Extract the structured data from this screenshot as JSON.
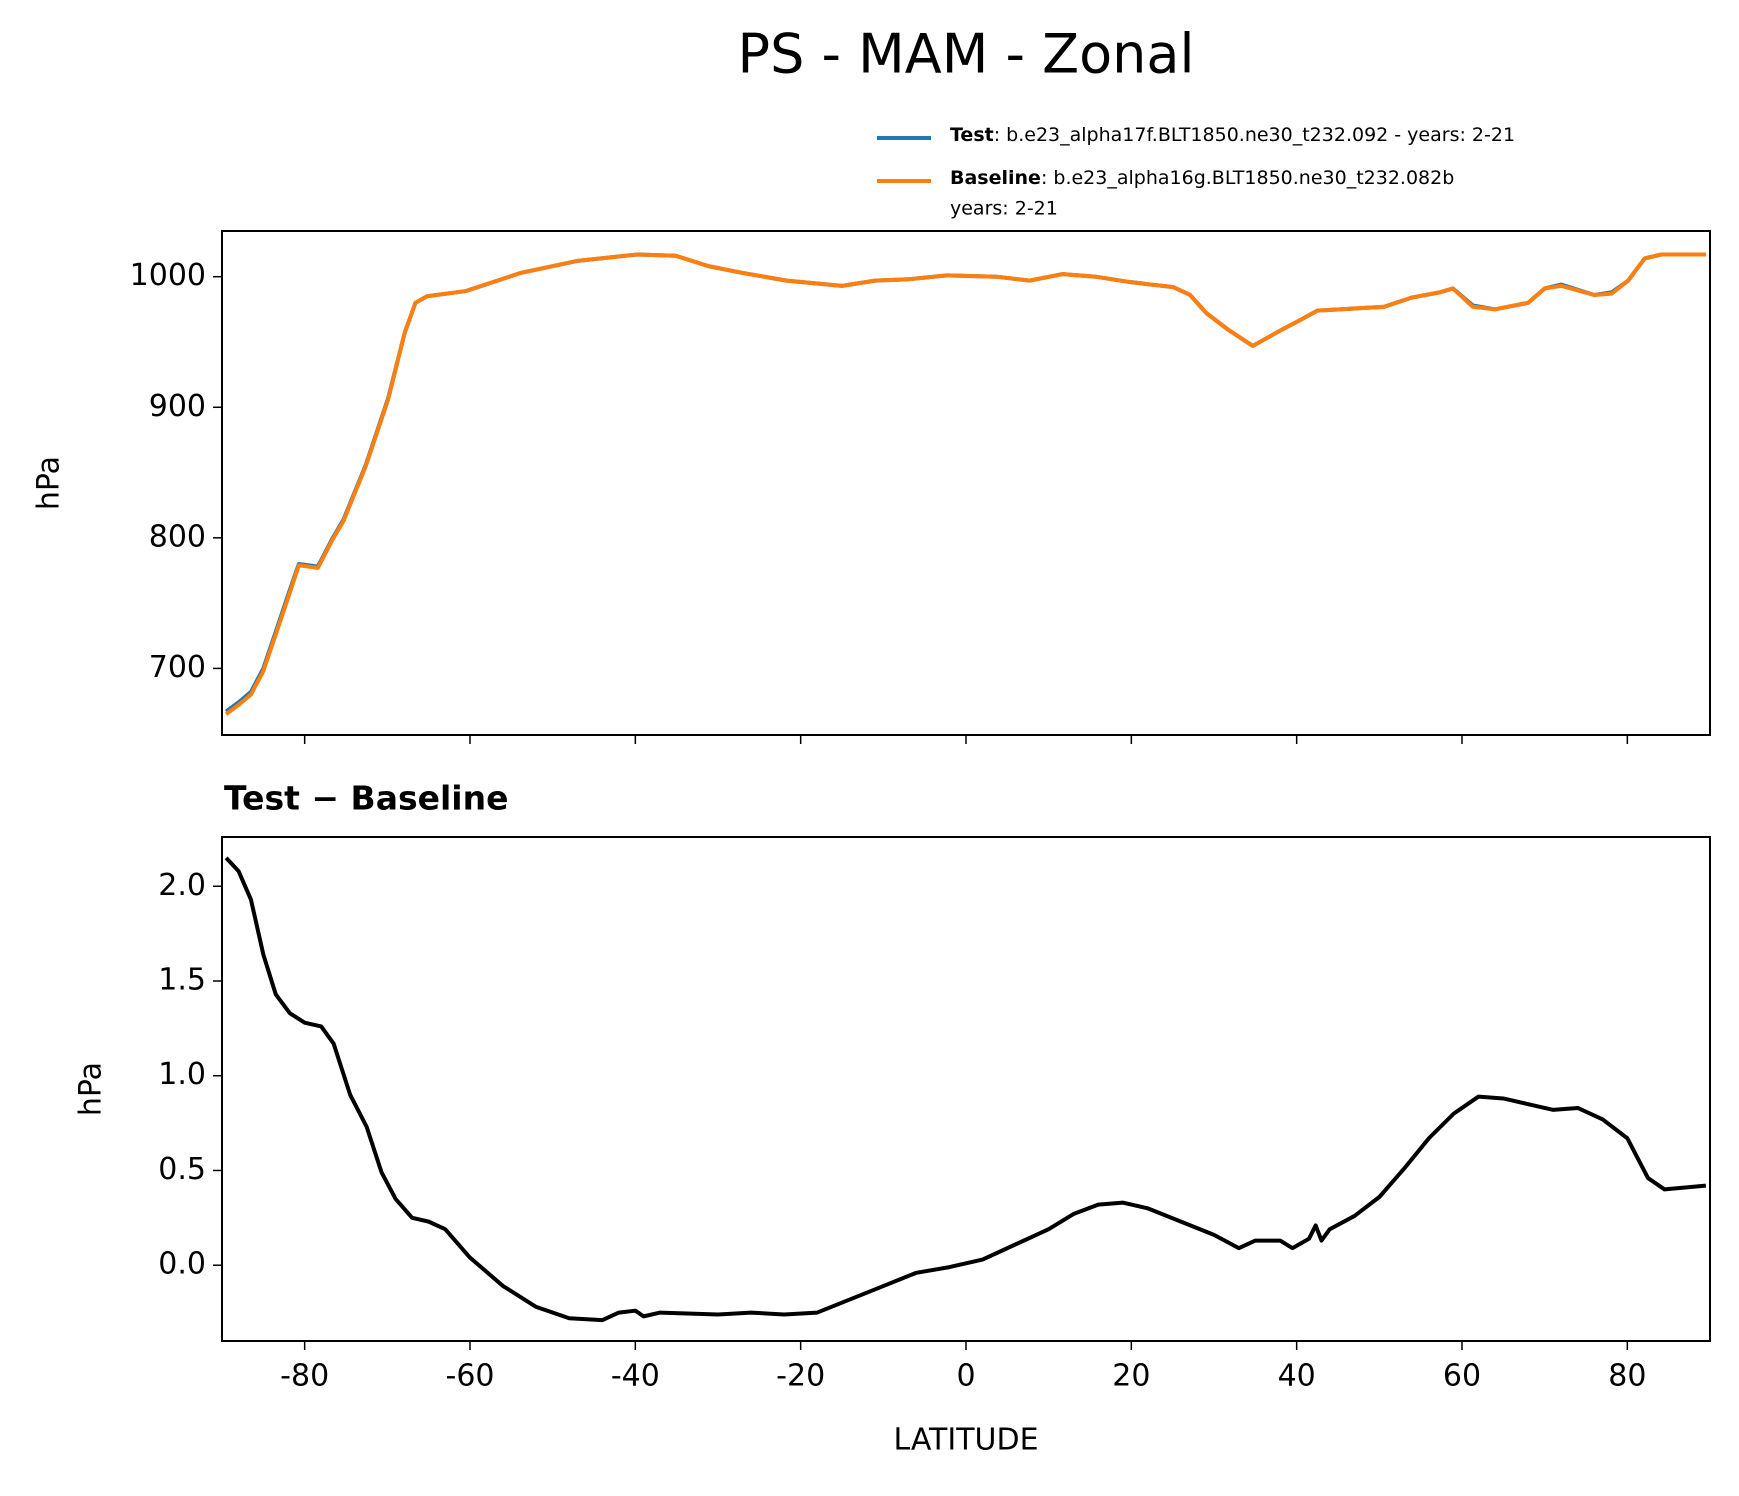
{
  "chart_data": [
    {
      "type": "line",
      "title": "PS - MAM - Zonal",
      "ylabel": "hPa",
      "xlim": [
        -90,
        90
      ],
      "xticks": [
        -80,
        -60,
        -40,
        -20,
        0,
        20,
        40,
        60,
        80
      ],
      "ylim": [
        649,
        1035
      ],
      "yticks": [
        700,
        800,
        900,
        1000
      ],
      "legend": "upper right",
      "x": [
        -89.5,
        -88,
        -86.5,
        -85,
        -83.5,
        -81.8,
        -80.7,
        -78.4,
        -76.6,
        -75.3,
        -72.6,
        -69.9,
        -67.9,
        -66.6,
        -65.2,
        -60.5,
        -53.8,
        -47.1,
        -39.8,
        -35.1,
        -31.1,
        -27.1,
        -21.7,
        -15,
        -11,
        -7,
        -2.3,
        3.7,
        7.7,
        11.7,
        15.7,
        19.7,
        25.1,
        27.1,
        29.1,
        31.8,
        34.7,
        37.8,
        40.5,
        42.5,
        45.2,
        50.6,
        53.9,
        57.3,
        58.9,
        61.3,
        64,
        68,
        70,
        72,
        76,
        78.1,
        80.1,
        82.1,
        84.1,
        89.5
      ],
      "series": [
        {
          "name": "Test",
          "legend_text": ": b.e23_alpha17f.BLT1850.ne30_t232.092 - years: 2-21",
          "color": "#1f77b4",
          "values": [
            667,
            674,
            682,
            700,
            728,
            760,
            780,
            778,
            800,
            814,
            856,
            907,
            957,
            980,
            985,
            989,
            1003,
            1012,
            1017,
            1016,
            1008,
            1003,
            997,
            993,
            997,
            998,
            1001,
            1000,
            997,
            1002,
            1000,
            996,
            992,
            986,
            972,
            959,
            947,
            958,
            967,
            974,
            975,
            977,
            984,
            988,
            991,
            978,
            975,
            980,
            991,
            994,
            986,
            988,
            997,
            1014,
            1017,
            1017
          ]
        },
        {
          "name": "Baseline",
          "legend_lines": [
            ": b.e23_alpha16g.BLT1850.ne30_t232.082b",
            "years: 2-21"
          ],
          "color": "#ff7f0e",
          "values": [
            665,
            672,
            680,
            698,
            726,
            758,
            779,
            777,
            799,
            813,
            855,
            906,
            957,
            980,
            985,
            989,
            1003,
            1012,
            1017,
            1016,
            1008,
            1003,
            997,
            993,
            997,
            998,
            1001,
            1000,
            997,
            1002,
            1000,
            996,
            992,
            986,
            972,
            959,
            947,
            958,
            967,
            974,
            975,
            977,
            984,
            988,
            991,
            977,
            975,
            980,
            991,
            993,
            986,
            987,
            997,
            1014,
            1017,
            1017
          ]
        }
      ]
    },
    {
      "type": "line",
      "title": "Test − Baseline",
      "ylabel": "hPa",
      "xlabel": "LATITUDE",
      "xlim": [
        -90,
        90
      ],
      "xticks": [
        -80,
        -60,
        -40,
        -20,
        0,
        20,
        40,
        60,
        80
      ],
      "ylim": [
        -0.4,
        2.26
      ],
      "yticks": [
        {
          "value": 0,
          "label": "0.0"
        },
        0.5,
        {
          "value": 1,
          "label": "1.0"
        },
        1.5,
        {
          "value": 2,
          "label": "2.0"
        }
      ],
      "x": [
        -89.5,
        -88,
        -86.5,
        -85,
        -83.5,
        -81.8,
        -80,
        -78,
        -76.5,
        -74.5,
        -72.5,
        -70.7,
        -69,
        -67,
        -65,
        -63,
        -60,
        -56,
        -52,
        -48,
        -44,
        -42,
        -40,
        -39,
        -37,
        -30,
        -26,
        -22,
        -18,
        -14,
        -10,
        -6,
        -2,
        2,
        6,
        10,
        13,
        16,
        19,
        22,
        26,
        30,
        33,
        35,
        38,
        39.5,
        41.5,
        42.3,
        43,
        44,
        47,
        50,
        53,
        56,
        59,
        62,
        65,
        68,
        71,
        74,
        77,
        80,
        82.5,
        84.5,
        87,
        89.5
      ],
      "series": [
        {
          "name": "Test − Baseline",
          "color": "#000000",
          "values": [
            2.15,
            2.08,
            1.93,
            1.64,
            1.43,
            1.33,
            1.28,
            1.26,
            1.17,
            0.9,
            0.73,
            0.49,
            0.35,
            0.25,
            0.23,
            0.19,
            0.04,
            -0.11,
            -0.22,
            -0.28,
            -0.29,
            -0.25,
            -0.24,
            -0.27,
            -0.25,
            -0.26,
            -0.25,
            -0.26,
            -0.25,
            -0.18,
            -0.11,
            -0.04,
            -0.01,
            0.03,
            0.11,
            0.19,
            0.27,
            0.32,
            0.33,
            0.3,
            0.23,
            0.16,
            0.09,
            0.13,
            0.13,
            0.09,
            0.14,
            0.21,
            0.13,
            0.19,
            0.26,
            0.36,
            0.51,
            0.67,
            0.8,
            0.89,
            0.88,
            0.85,
            0.82,
            0.83,
            0.77,
            0.67,
            0.46,
            0.4,
            0.41,
            0.42
          ]
        }
      ]
    }
  ]
}
